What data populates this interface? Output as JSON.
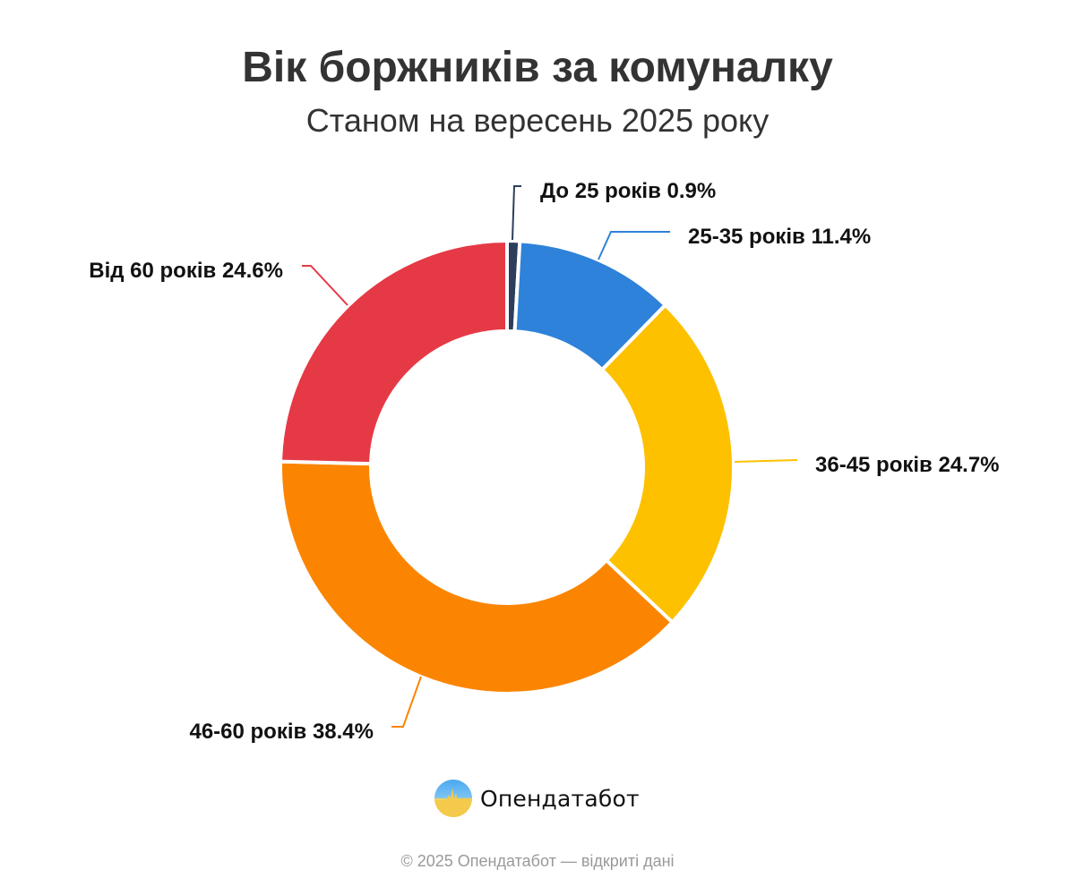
{
  "header": {
    "title": "Вік боржників за комуналку",
    "subtitle": "Станом на вересень 2025 року"
  },
  "chart_data": {
    "type": "pie",
    "variant": "donut",
    "title": "Вік боржників за комуналку",
    "subtitle": "Станом на вересень 2025 року",
    "unit": "%",
    "start_angle": "12 o'clock, clockwise",
    "categories": [
      "До 25 років",
      "25-35 років",
      "36-45 років",
      "46-60 років",
      "Від 60 років"
    ],
    "values": [
      0.9,
      11.4,
      24.7,
      38.4,
      24.6
    ],
    "colors": [
      "#2c3e5c",
      "#2e82d9",
      "#fdc100",
      "#fb8500",
      "#e63946"
    ],
    "labels": [
      "До 25 років 0.9%",
      "25-35 років 11.4%",
      "36-45 років 24.7%",
      "46-60 років 38.4%",
      "Від 60 років 24.6%"
    ],
    "legend": "none (labels with leader lines)"
  },
  "brand": {
    "name": "Опендатабот",
    "logo_icon": "opendatabot-logo-icon"
  },
  "footer": {
    "text": "© 2025 Опендатабот — відкриті дані"
  }
}
